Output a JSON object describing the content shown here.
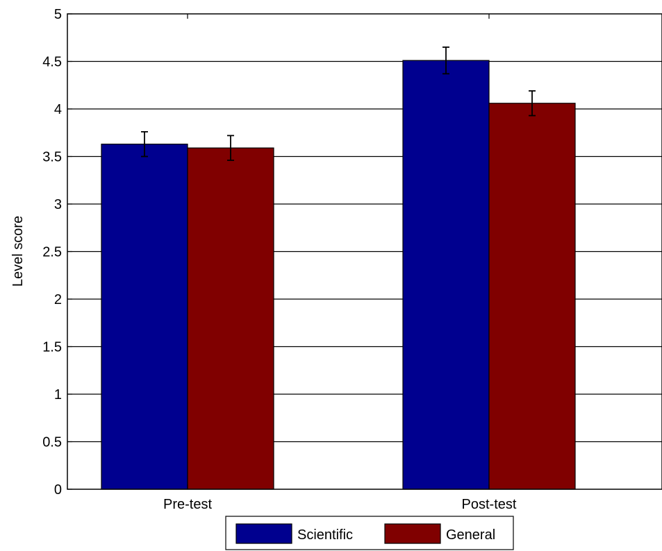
{
  "chart_data": {
    "type": "bar",
    "title": "",
    "xlabel": "",
    "ylabel": "Level score",
    "ylim": [
      0,
      5
    ],
    "yticks": [
      0,
      0.5,
      1,
      1.5,
      2,
      2.5,
      3,
      3.5,
      4,
      4.5,
      5
    ],
    "ytick_labels": [
      "0",
      "0.5",
      "1",
      "1.5",
      "2",
      "2.5",
      "3",
      "3.5",
      "4",
      "4.5",
      "5"
    ],
    "categories": [
      "Pre-test",
      "Post-test"
    ],
    "grid": "horizontal",
    "legend_position": "bottom-center",
    "series": [
      {
        "name": "Scientific",
        "color": "#00008f",
        "values": [
          3.63,
          4.51
        ],
        "error": [
          0.13,
          0.14
        ]
      },
      {
        "name": "General",
        "color": "#800000",
        "values": [
          3.59,
          4.06
        ],
        "error": [
          0.13,
          0.13
        ]
      }
    ]
  }
}
